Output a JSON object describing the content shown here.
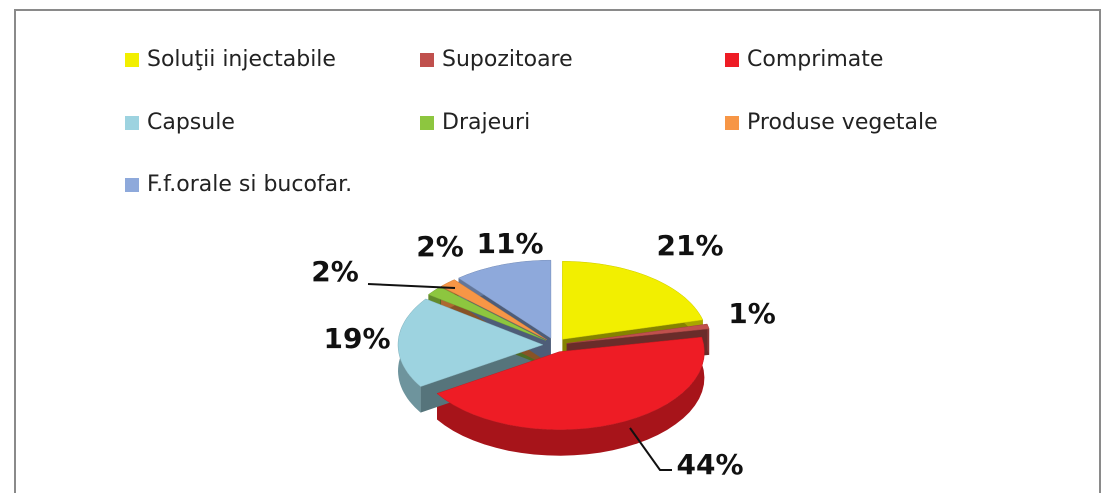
{
  "chart_data": {
    "type": "pie",
    "categories": [
      "Soluţii injectabile",
      "Supozitoare",
      "Comprimate",
      "Capsule",
      "Drajeuri",
      "Produse vegetale",
      "F.f.orale si bucofar."
    ],
    "values": [
      21,
      1,
      44,
      19,
      2,
      2,
      11
    ],
    "value_labels": [
      "21%",
      "1%",
      "44%",
      "19%",
      "2%",
      "2%",
      "11%"
    ],
    "colors": [
      "#f2ef00",
      "#c0504d",
      "#ee1c25",
      "#9dd3e0",
      "#8dc63f",
      "#f79646",
      "#8ea9db"
    ],
    "legend": "top"
  }
}
